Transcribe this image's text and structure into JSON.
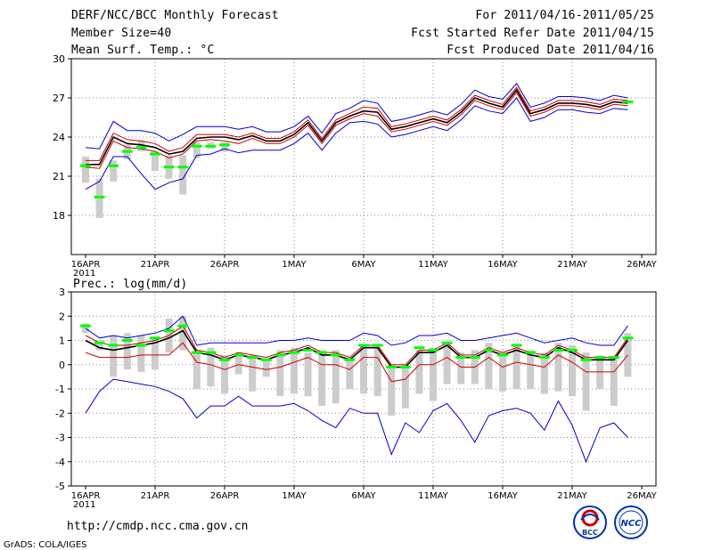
{
  "header": {
    "title": "DERF/NCC/BCC Monthly Forecast",
    "member_size": "Member Size=40",
    "variable": "Mean Surf. Temp.: °C",
    "period": "For 2011/04/16-2011/05/25",
    "fcst_started": "Fcst Started Refer Date 2011/04/15",
    "fcst_produced": "Fcst Produced Date 2011/04/16"
  },
  "footer": {
    "url": "http://cmdp.ncc.cma.gov.cn",
    "grads_credit": "GrADS: COLA/IGES",
    "logo1_text": "BCC",
    "logo2_text": "NCC"
  },
  "colors": {
    "envelope": "#0000cc",
    "spread": "#cc0000",
    "mean": "#000000",
    "obs": "#00ff00",
    "box": "#cccccc",
    "grid": "#888888"
  },
  "chart_data": [
    {
      "type": "line",
      "title": "Mean Surf. Temp.: °C",
      "ylim": [
        15,
        30
      ],
      "yticks": [
        "18",
        "21",
        "24",
        "27",
        "30"
      ],
      "xlim": [
        0,
        40
      ],
      "xticks": [
        {
          "x": 0,
          "label": "16APR",
          "sub": "2011"
        },
        {
          "x": 5,
          "label": "21APR"
        },
        {
          "x": 10,
          "label": "26APR"
        },
        {
          "x": 15,
          "label": "1MAY"
        },
        {
          "x": 20,
          "label": "6MAY"
        },
        {
          "x": 25,
          "label": "11MAY"
        },
        {
          "x": 30,
          "label": "16MAY"
        },
        {
          "x": 35,
          "label": "21MAY"
        },
        {
          "x": 40,
          "label": "26MAY"
        }
      ],
      "x": [
        0,
        1,
        2,
        3,
        4,
        5,
        6,
        7,
        8,
        9,
        10,
        11,
        12,
        13,
        14,
        15,
        16,
        17,
        18,
        19,
        20,
        21,
        22,
        23,
        24,
        25,
        26,
        27,
        28,
        29,
        30,
        31,
        32,
        33,
        34,
        35,
        36,
        37,
        38,
        39
      ],
      "series": [
        {
          "name": "max",
          "values": [
            23.2,
            23.1,
            25.2,
            24.5,
            24.5,
            24.3,
            23.7,
            24.2,
            24.8,
            24.8,
            24.8,
            24.6,
            24.8,
            24.4,
            24.4,
            24.8,
            25.6,
            24.3,
            25.8,
            26.2,
            26.8,
            26.6,
            25.2,
            25.4,
            25.7,
            26.0,
            25.7,
            26.5,
            27.6,
            27.1,
            26.9,
            28.1,
            26.3,
            26.6,
            27.1,
            27.1,
            27.0,
            26.8,
            27.2,
            27.0
          ]
        },
        {
          "name": "upper",
          "values": [
            22.2,
            22.2,
            24.3,
            23.8,
            23.7,
            23.5,
            22.9,
            23.2,
            24.2,
            24.2,
            24.2,
            24.0,
            24.3,
            23.9,
            23.9,
            24.4,
            25.3,
            23.9,
            25.3,
            25.8,
            26.3,
            26.2,
            24.8,
            25.0,
            25.3,
            25.6,
            25.3,
            26.1,
            27.2,
            26.8,
            26.5,
            27.8,
            26.0,
            26.3,
            26.8,
            26.8,
            26.7,
            26.5,
            26.9,
            26.8
          ]
        },
        {
          "name": "mean",
          "values": [
            21.9,
            21.9,
            24.0,
            23.5,
            23.4,
            23.2,
            22.7,
            22.9,
            23.9,
            24.0,
            24.0,
            23.8,
            24.1,
            23.7,
            23.7,
            24.2,
            25.1,
            23.7,
            25.1,
            25.6,
            26.0,
            25.9,
            24.6,
            24.8,
            25.1,
            25.4,
            25.1,
            25.9,
            27.0,
            26.6,
            26.3,
            27.6,
            25.8,
            26.1,
            26.6,
            26.6,
            26.5,
            26.3,
            26.7,
            26.6
          ]
        },
        {
          "name": "lower",
          "values": [
            21.7,
            21.6,
            23.7,
            23.2,
            23.1,
            22.9,
            22.4,
            22.7,
            23.7,
            23.8,
            23.7,
            23.5,
            23.9,
            23.5,
            23.5,
            24.0,
            24.9,
            23.5,
            24.9,
            25.4,
            25.8,
            25.6,
            24.4,
            24.6,
            24.9,
            25.2,
            24.9,
            25.7,
            26.8,
            26.4,
            26.1,
            27.4,
            25.6,
            25.9,
            26.4,
            26.4,
            26.3,
            26.1,
            26.5,
            26.4
          ]
        },
        {
          "name": "min",
          "values": [
            20.0,
            20.6,
            22.5,
            22.5,
            21.2,
            20.0,
            20.5,
            20.8,
            22.6,
            22.7,
            23.1,
            22.8,
            23.0,
            23.0,
            23.0,
            23.5,
            24.3,
            23.0,
            24.3,
            25.1,
            25.2,
            25.0,
            24.0,
            24.2,
            24.5,
            24.8,
            24.5,
            25.3,
            26.4,
            26.0,
            25.8,
            27.0,
            25.2,
            25.5,
            26.1,
            26.1,
            25.9,
            25.8,
            26.2,
            26.1
          ]
        }
      ],
      "boxes": [
        [
          20.5,
          22.5
        ],
        [
          17.8,
          20.8
        ],
        [
          20.6,
          22.2
        ],
        [
          22.3,
          23.4
        ],
        [
          22.9,
          23.7
        ],
        [
          21.4,
          22.9
        ],
        [
          20.8,
          22.6
        ],
        [
          19.6,
          22.6
        ],
        [
          22.4,
          23.6
        ],
        [
          23.1,
          23.6
        ],
        [
          22.9,
          23.6
        ],
        null,
        null,
        null,
        null,
        null,
        null,
        null,
        null,
        null,
        null,
        null,
        null,
        null,
        null,
        null,
        null,
        null,
        null,
        null,
        null,
        null,
        null,
        null,
        null,
        null,
        null,
        null,
        null,
        null
      ],
      "obs": [
        21.8,
        19.4,
        21.8,
        22.9,
        23.2,
        22.7,
        21.7,
        21.7,
        23.3,
        23.3,
        23.4,
        null,
        null,
        null,
        null,
        null,
        null,
        null,
        null,
        null,
        null,
        null,
        null,
        null,
        null,
        null,
        null,
        null,
        null,
        null,
        null,
        null,
        null,
        null,
        null,
        null,
        null,
        null,
        null,
        26.7
      ]
    },
    {
      "type": "line",
      "title": "Prec.: log(mm/d)",
      "ylim": [
        -5,
        3
      ],
      "yticks": [
        "-5",
        "-4",
        "-3",
        "-2",
        "-1",
        "0",
        "1",
        "2",
        "3"
      ],
      "xlim": [
        0,
        40
      ],
      "xticks": [
        {
          "x": 0,
          "label": "16APR",
          "sub": "2011"
        },
        {
          "x": 5,
          "label": "21APR"
        },
        {
          "x": 10,
          "label": "26APR"
        },
        {
          "x": 15,
          "label": "1MAY"
        },
        {
          "x": 20,
          "label": "6MAY"
        },
        {
          "x": 25,
          "label": "11MAY"
        },
        {
          "x": 30,
          "label": "16MAY"
        },
        {
          "x": 35,
          "label": "21MAY"
        },
        {
          "x": 40,
          "label": "26MAY"
        }
      ],
      "x": [
        0,
        1,
        2,
        3,
        4,
        5,
        6,
        7,
        8,
        9,
        10,
        11,
        12,
        13,
        14,
        15,
        16,
        17,
        18,
        19,
        20,
        21,
        22,
        23,
        24,
        25,
        26,
        27,
        28,
        29,
        30,
        31,
        32,
        33,
        34,
        35,
        36,
        37,
        38,
        39
      ],
      "series": [
        {
          "name": "max",
          "values": [
            1.5,
            1.1,
            1.2,
            1.1,
            1.2,
            1.3,
            1.5,
            2.0,
            0.8,
            0.9,
            0.9,
            0.9,
            0.9,
            0.9,
            1.0,
            1.0,
            1.1,
            1.0,
            1.0,
            1.0,
            1.3,
            1.2,
            0.8,
            0.9,
            1.2,
            1.2,
            1.3,
            1.0,
            1.0,
            1.1,
            1.2,
            1.3,
            1.1,
            0.9,
            1.0,
            1.1,
            0.9,
            0.8,
            0.8,
            1.6
          ]
        },
        {
          "name": "upper",
          "values": [
            1.2,
            0.9,
            0.8,
            0.8,
            0.9,
            1.0,
            1.2,
            1.6,
            0.6,
            0.5,
            0.3,
            0.5,
            0.4,
            0.3,
            0.5,
            0.6,
            0.8,
            0.5,
            0.5,
            0.3,
            0.8,
            0.8,
            0.0,
            0.0,
            0.6,
            0.6,
            0.9,
            0.4,
            0.4,
            0.7,
            0.5,
            0.7,
            0.5,
            0.4,
            0.8,
            0.6,
            0.3,
            0.3,
            0.3,
            1.1
          ]
        },
        {
          "name": "mean",
          "values": [
            1.0,
            0.7,
            0.6,
            0.7,
            0.8,
            0.9,
            1.1,
            1.4,
            0.5,
            0.4,
            0.2,
            0.4,
            0.3,
            0.2,
            0.4,
            0.5,
            0.7,
            0.4,
            0.4,
            0.2,
            0.7,
            0.7,
            -0.1,
            -0.1,
            0.5,
            0.5,
            0.8,
            0.3,
            0.3,
            0.6,
            0.4,
            0.6,
            0.4,
            0.3,
            0.7,
            0.5,
            0.2,
            0.2,
            0.2,
            1.0
          ]
        },
        {
          "name": "lower",
          "values": [
            0.5,
            0.3,
            0.3,
            0.3,
            0.4,
            0.4,
            0.4,
            0.9,
            0.1,
            0.0,
            -0.2,
            0.0,
            -0.1,
            -0.2,
            -0.1,
            0.1,
            0.3,
            0.0,
            0.0,
            -0.2,
            0.3,
            0.3,
            -0.7,
            -0.6,
            0.0,
            0.0,
            0.3,
            -0.1,
            -0.1,
            0.3,
            -0.1,
            0.1,
            0.0,
            -0.1,
            0.4,
            0.1,
            -0.3,
            -0.3,
            -0.3,
            0.4
          ]
        },
        {
          "name": "min",
          "values": [
            -2.0,
            -1.1,
            -0.6,
            -0.7,
            -0.8,
            -0.9,
            -1.1,
            -1.4,
            -2.2,
            -1.7,
            -1.7,
            -1.3,
            -1.7,
            -1.7,
            -1.7,
            -1.6,
            -1.9,
            -2.3,
            -2.6,
            -1.8,
            -2.0,
            -2.0,
            -3.7,
            -2.4,
            -2.8,
            -1.9,
            -1.6,
            -2.3,
            -3.2,
            -2.1,
            -1.9,
            -1.8,
            -2.0,
            -2.7,
            -1.5,
            -2.5,
            -4.0,
            -2.6,
            -2.4,
            -3.0
          ]
        }
      ],
      "boxes": [
        [
          1.3,
          1.7
        ],
        [
          0.6,
          1.0
        ],
        [
          -0.5,
          1.2
        ],
        [
          -0.2,
          1.3
        ],
        [
          -0.3,
          1.2
        ],
        [
          -0.2,
          1.1
        ],
        [
          0.5,
          1.9
        ],
        [
          0.6,
          2.0
        ],
        [
          -1.0,
          0.5
        ],
        [
          -0.9,
          0.7
        ],
        [
          -1.2,
          0.4
        ],
        [
          -0.4,
          0.5
        ],
        [
          -1.1,
          0.4
        ],
        [
          -0.5,
          0.2
        ],
        [
          -1.3,
          0.6
        ],
        [
          -1.2,
          0.7
        ],
        [
          -1.3,
          0.5
        ],
        [
          -1.7,
          0.6
        ],
        [
          -1.6,
          0.6
        ],
        [
          -1.0,
          0.3
        ],
        [
          -1.2,
          0.8
        ],
        [
          -1.3,
          0.7
        ],
        [
          -2.1,
          0.0
        ],
        [
          -1.8,
          0.0
        ],
        [
          -1.2,
          0.6
        ],
        [
          -1.5,
          0.7
        ],
        [
          -0.8,
          0.9
        ],
        [
          -0.8,
          0.5
        ],
        [
          -0.8,
          0.6
        ],
        [
          -1.0,
          0.9
        ],
        [
          -1.1,
          0.5
        ],
        [
          -1.0,
          0.8
        ],
        [
          -1.0,
          0.6
        ],
        [
          -1.2,
          0.5
        ],
        [
          -1.1,
          0.9
        ],
        [
          -1.3,
          0.8
        ],
        [
          -1.9,
          0.5
        ],
        [
          -1.0,
          0.3
        ],
        [
          -1.7,
          0.3
        ],
        [
          -0.5,
          1.3
        ]
      ],
      "obs": [
        1.6,
        0.9,
        0.8,
        1.0,
        0.8,
        1.1,
        1.4,
        1.6,
        0.5,
        0.5,
        0.2,
        0.4,
        0.3,
        0.2,
        0.4,
        0.5,
        0.6,
        0.5,
        0.4,
        0.2,
        0.8,
        0.8,
        -0.1,
        -0.1,
        0.7,
        0.6,
        0.9,
        0.3,
        0.3,
        0.6,
        0.4,
        0.8,
        0.5,
        0.3,
        0.6,
        0.6,
        0.2,
        0.3,
        0.3,
        1.1
      ]
    }
  ]
}
